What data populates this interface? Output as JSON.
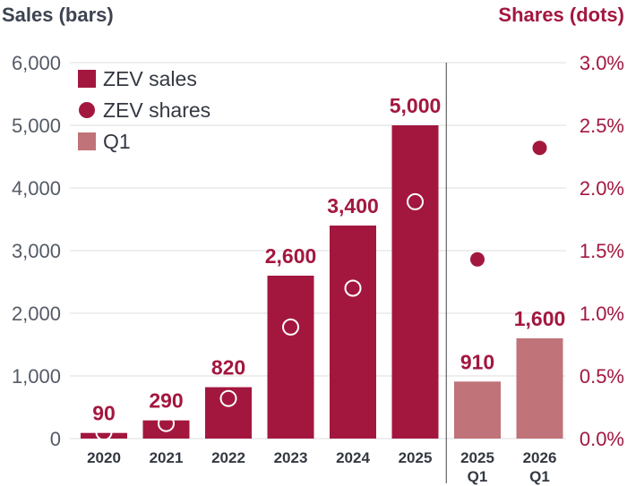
{
  "chart_data": {
    "type": "bar",
    "y_left_label": "Sales (bars)",
    "y_right_label": "Shares (dots)",
    "y_left_ticks": [
      "0",
      "1,000",
      "2,000",
      "3,000",
      "4,000",
      "5,000",
      "6,000"
    ],
    "y_right_ticks": [
      "0.0%",
      "0.5%",
      "1.0%",
      "1.5%",
      "2.0%",
      "2.5%",
      "3.0%"
    ],
    "ylim_left": [
      0,
      6000
    ],
    "ylim_right": [
      0,
      3.0
    ],
    "grid": true,
    "legend_position": "top-left",
    "legend": [
      {
        "label": "ZEV sales",
        "marker": "square",
        "color": "#a3173f"
      },
      {
        "label": "ZEV shares",
        "marker": "circle",
        "color": "#a3173f"
      },
      {
        "label": "Q1",
        "marker": "square",
        "color": "#c07378"
      }
    ],
    "bars": [
      {
        "category": [
          "2020"
        ],
        "value": 90,
        "label": "90",
        "share": 0.05,
        "group": "annual"
      },
      {
        "category": [
          "2021"
        ],
        "value": 290,
        "label": "290",
        "share": 0.12,
        "group": "annual"
      },
      {
        "category": [
          "2022"
        ],
        "value": 820,
        "label": "820",
        "share": 0.32,
        "group": "annual"
      },
      {
        "category": [
          "2023"
        ],
        "value": 2600,
        "label": "2,600",
        "share": 0.89,
        "group": "annual"
      },
      {
        "category": [
          "2024"
        ],
        "value": 3400,
        "label": "3,400",
        "share": 1.2,
        "group": "annual"
      },
      {
        "category": [
          "2025"
        ],
        "value": 5000,
        "label": "5,000",
        "share": 1.89,
        "group": "annual"
      },
      {
        "category": [
          "2025",
          "Q1"
        ],
        "value": 910,
        "label": "910",
        "share": 1.43,
        "group": "q1"
      },
      {
        "category": [
          "2026",
          "Q1"
        ],
        "value": 1600,
        "label": "1,600",
        "share": 2.32,
        "group": "q1"
      }
    ],
    "colors": {
      "annual": "#a3173f",
      "q1": "#c07378",
      "grid": "#dedede",
      "divider": "#444444"
    }
  }
}
